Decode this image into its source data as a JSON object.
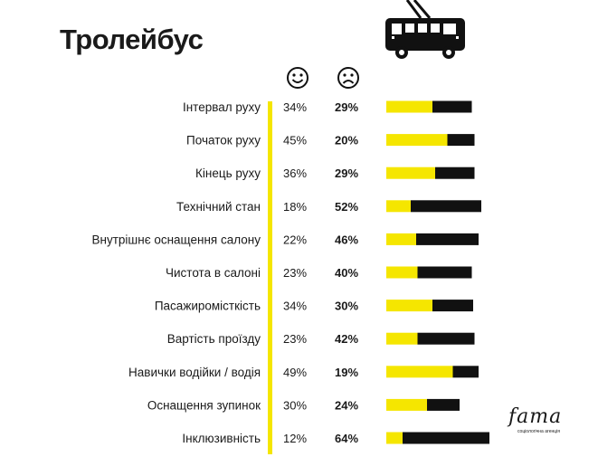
{
  "title": "Тролейбус",
  "icons": {
    "vehicle": "trolleybus-icon",
    "positive": "smiling-face-icon",
    "negative": "frowning-face-icon"
  },
  "logo": {
    "wordmark": "fama",
    "tagline": "соціологічна агенція"
  },
  "colors": {
    "positive": "#f5e600",
    "negative": "#111111",
    "accent": "#f5e600"
  },
  "chart_data": {
    "type": "bar",
    "stacked": true,
    "orientation": "horizontal",
    "categories": [
      "Інтервал руху",
      "Початок руху",
      "Кінець руху",
      "Технічний стан",
      "Внутрішнє оснащення салону",
      "Чистота в салоні",
      "Пасажиромісткість",
      "Вартість проїзду",
      "Навички водійки / водія",
      "Оснащення зупинок",
      "Інклюзивність"
    ],
    "series": [
      {
        "values": [
          34,
          45,
          36,
          18,
          22,
          23,
          34,
          23,
          49,
          30,
          12
        ]
      },
      {
        "values": [
          29,
          20,
          29,
          52,
          46,
          40,
          30,
          42,
          19,
          24,
          64
        ]
      }
    ],
    "positive_labels": [
      "34%",
      "45%",
      "36%",
      "18%",
      "22%",
      "23%",
      "34%",
      "23%",
      "49%",
      "30%",
      "12%"
    ],
    "negative_labels": [
      "29%",
      "20%",
      "29%",
      "52%",
      "46%",
      "40%",
      "30%",
      "42%",
      "19%",
      "24%",
      "64%"
    ]
  }
}
